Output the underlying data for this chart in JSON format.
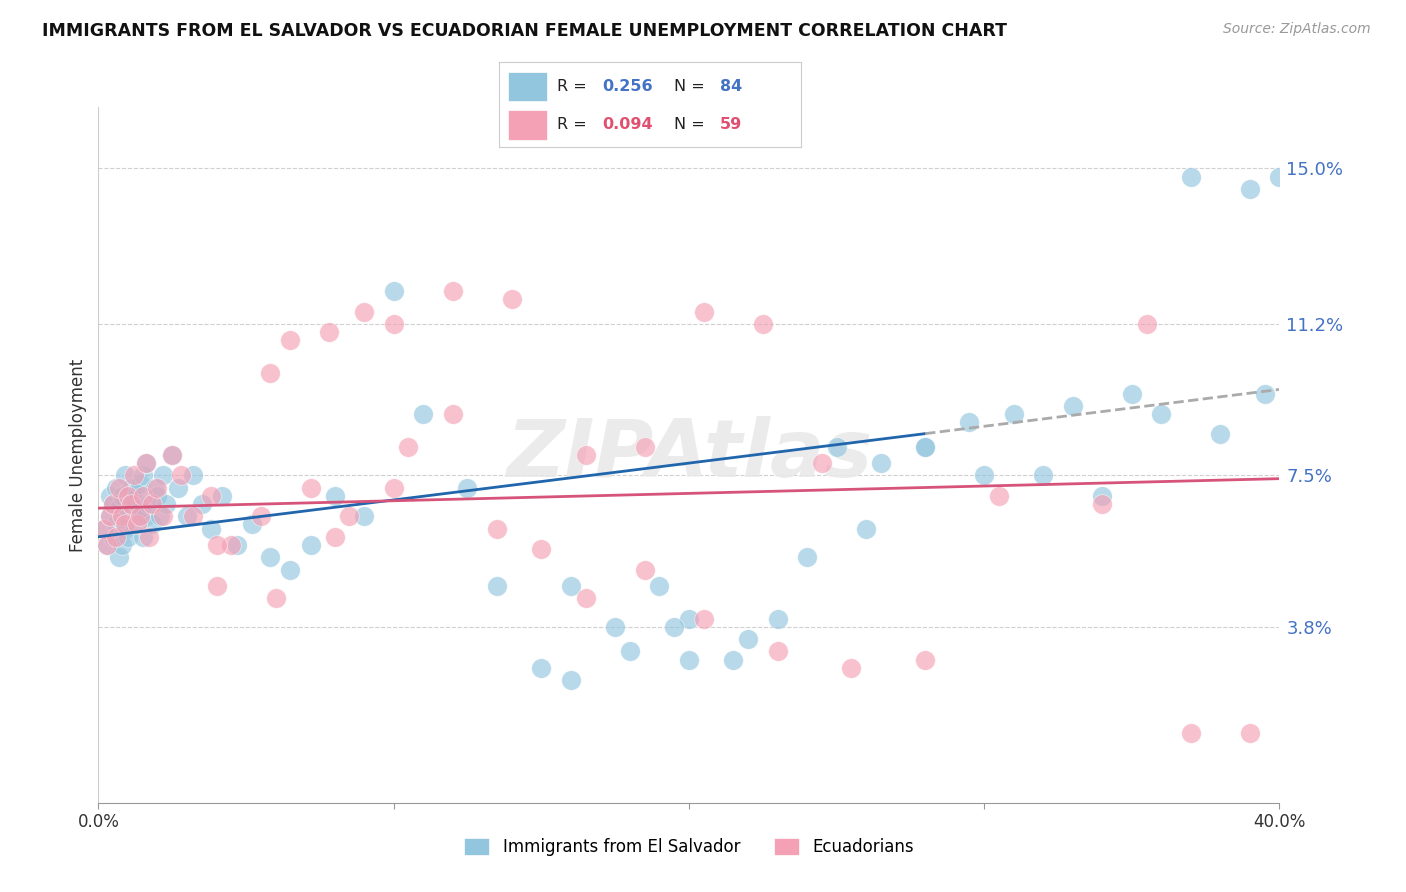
{
  "title": "IMMIGRANTS FROM EL SALVADOR VS ECUADORIAN FEMALE UNEMPLOYMENT CORRELATION CHART",
  "source": "Source: ZipAtlas.com",
  "ylabel": "Female Unemployment",
  "xlim": [
    0.0,
    0.4
  ],
  "ylim": [
    -0.005,
    0.165
  ],
  "yticks": [
    0.038,
    0.075,
    0.112,
    0.15
  ],
  "ytick_labels": [
    "3.8%",
    "7.5%",
    "11.2%",
    "15.0%"
  ],
  "xticks": [
    0.0,
    0.1,
    0.2,
    0.3,
    0.4
  ],
  "xtick_labels": [
    "0.0%",
    "",
    "",
    "",
    "40.0%"
  ],
  "legend1_r": "0.256",
  "legend1_n": "84",
  "legend2_r": "0.094",
  "legend2_n": "59",
  "blue_color": "#92c5de",
  "pink_color": "#f4a0b5",
  "blue_line_color": "#2166ac",
  "pink_line_color": "#d6547a",
  "watermark": "ZIPAtlas",
  "blue_r_color": "#4472c4",
  "pink_r_color": "#e05070",
  "text_color": "#333333",
  "grid_color": "#d0d0d0",
  "blue_scatter_x": [
    0.002,
    0.003,
    0.004,
    0.004,
    0.005,
    0.005,
    0.006,
    0.006,
    0.007,
    0.007,
    0.008,
    0.008,
    0.009,
    0.009,
    0.01,
    0.01,
    0.011,
    0.011,
    0.012,
    0.012,
    0.013,
    0.013,
    0.014,
    0.014,
    0.015,
    0.015,
    0.016,
    0.016,
    0.017,
    0.018,
    0.019,
    0.02,
    0.021,
    0.022,
    0.023,
    0.025,
    0.027,
    0.03,
    0.032,
    0.035,
    0.038,
    0.042,
    0.047,
    0.052,
    0.058,
    0.065,
    0.072,
    0.08,
    0.09,
    0.1,
    0.11,
    0.125,
    0.135,
    0.15,
    0.16,
    0.175,
    0.19,
    0.2,
    0.215,
    0.23,
    0.25,
    0.265,
    0.28,
    0.295,
    0.31,
    0.33,
    0.35,
    0.37,
    0.39,
    0.4,
    0.16,
    0.18,
    0.2,
    0.22,
    0.24,
    0.26,
    0.28,
    0.3,
    0.32,
    0.34,
    0.36,
    0.38,
    0.395,
    0.195
  ],
  "blue_scatter_y": [
    0.062,
    0.058,
    0.065,
    0.07,
    0.06,
    0.068,
    0.063,
    0.072,
    0.055,
    0.067,
    0.058,
    0.07,
    0.062,
    0.075,
    0.06,
    0.065,
    0.068,
    0.072,
    0.063,
    0.069,
    0.065,
    0.071,
    0.067,
    0.073,
    0.06,
    0.075,
    0.065,
    0.078,
    0.068,
    0.063,
    0.072,
    0.07,
    0.065,
    0.075,
    0.068,
    0.08,
    0.072,
    0.065,
    0.075,
    0.068,
    0.062,
    0.07,
    0.058,
    0.063,
    0.055,
    0.052,
    0.058,
    0.07,
    0.065,
    0.12,
    0.09,
    0.072,
    0.048,
    0.028,
    0.025,
    0.038,
    0.048,
    0.03,
    0.03,
    0.04,
    0.082,
    0.078,
    0.082,
    0.088,
    0.09,
    0.092,
    0.095,
    0.148,
    0.145,
    0.148,
    0.048,
    0.032,
    0.04,
    0.035,
    0.055,
    0.062,
    0.082,
    0.075,
    0.075,
    0.07,
    0.09,
    0.085,
    0.095,
    0.038
  ],
  "pink_scatter_x": [
    0.002,
    0.003,
    0.004,
    0.005,
    0.006,
    0.007,
    0.008,
    0.009,
    0.01,
    0.011,
    0.012,
    0.013,
    0.014,
    0.015,
    0.016,
    0.017,
    0.018,
    0.02,
    0.022,
    0.025,
    0.028,
    0.032,
    0.038,
    0.045,
    0.055,
    0.065,
    0.078,
    0.09,
    0.105,
    0.12,
    0.135,
    0.15,
    0.165,
    0.185,
    0.205,
    0.23,
    0.255,
    0.28,
    0.305,
    0.34,
    0.355,
    0.04,
    0.058,
    0.072,
    0.085,
    0.1,
    0.12,
    0.14,
    0.165,
    0.185,
    0.205,
    0.225,
    0.245,
    0.04,
    0.06,
    0.08,
    0.1,
    0.37,
    0.39
  ],
  "pink_scatter_y": [
    0.062,
    0.058,
    0.065,
    0.068,
    0.06,
    0.072,
    0.065,
    0.063,
    0.07,
    0.068,
    0.075,
    0.063,
    0.065,
    0.07,
    0.078,
    0.06,
    0.068,
    0.072,
    0.065,
    0.08,
    0.075,
    0.065,
    0.07,
    0.058,
    0.065,
    0.108,
    0.11,
    0.115,
    0.082,
    0.09,
    0.062,
    0.057,
    0.045,
    0.052,
    0.04,
    0.032,
    0.028,
    0.03,
    0.07,
    0.068,
    0.112,
    0.058,
    0.1,
    0.072,
    0.065,
    0.072,
    0.12,
    0.118,
    0.08,
    0.082,
    0.115,
    0.112,
    0.078,
    0.048,
    0.045,
    0.06,
    0.112,
    0.012,
    0.012
  ]
}
